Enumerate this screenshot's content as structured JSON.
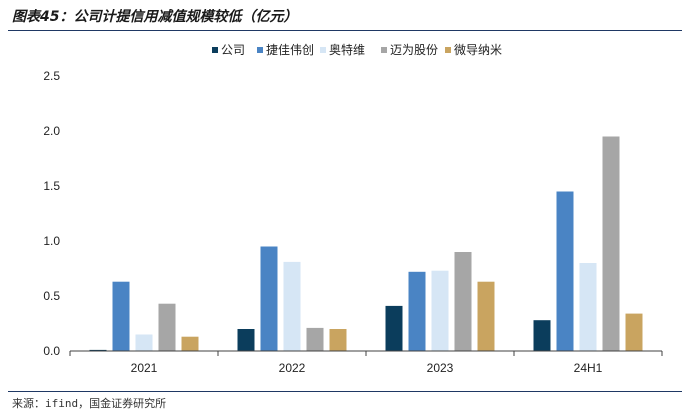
{
  "page": {
    "title": "图表45：公司计提信用减值规模较低（亿元）",
    "source": "来源：ifind，国金证券研究所"
  },
  "chart_data": {
    "type": "bar",
    "categories": [
      "2021",
      "2022",
      "2023",
      "24H1"
    ],
    "series": [
      {
        "name": "公司",
        "color": "#0b3d5c",
        "values": [
          0.01,
          0.2,
          0.41,
          0.28
        ]
      },
      {
        "name": "捷佳伟创",
        "color": "#4a84c4",
        "values": [
          0.63,
          0.95,
          0.72,
          1.45
        ]
      },
      {
        "name": "奥特维",
        "color": "#d6e6f5",
        "values": [
          0.15,
          0.81,
          0.73,
          0.8
        ]
      },
      {
        "name": "迈为股份",
        "color": "#a6a6a6",
        "values": [
          0.43,
          0.21,
          0.9,
          1.95
        ]
      },
      {
        "name": "微导纳米",
        "color": "#c9a460",
        "values": [
          0.13,
          0.2,
          0.63,
          0.34
        ]
      }
    ],
    "yticks": [
      "0.0",
      "0.5",
      "1.0",
      "1.5",
      "2.0",
      "2.5"
    ],
    "ylim": [
      0,
      2.5
    ],
    "grid": false,
    "legend_position": "top"
  }
}
